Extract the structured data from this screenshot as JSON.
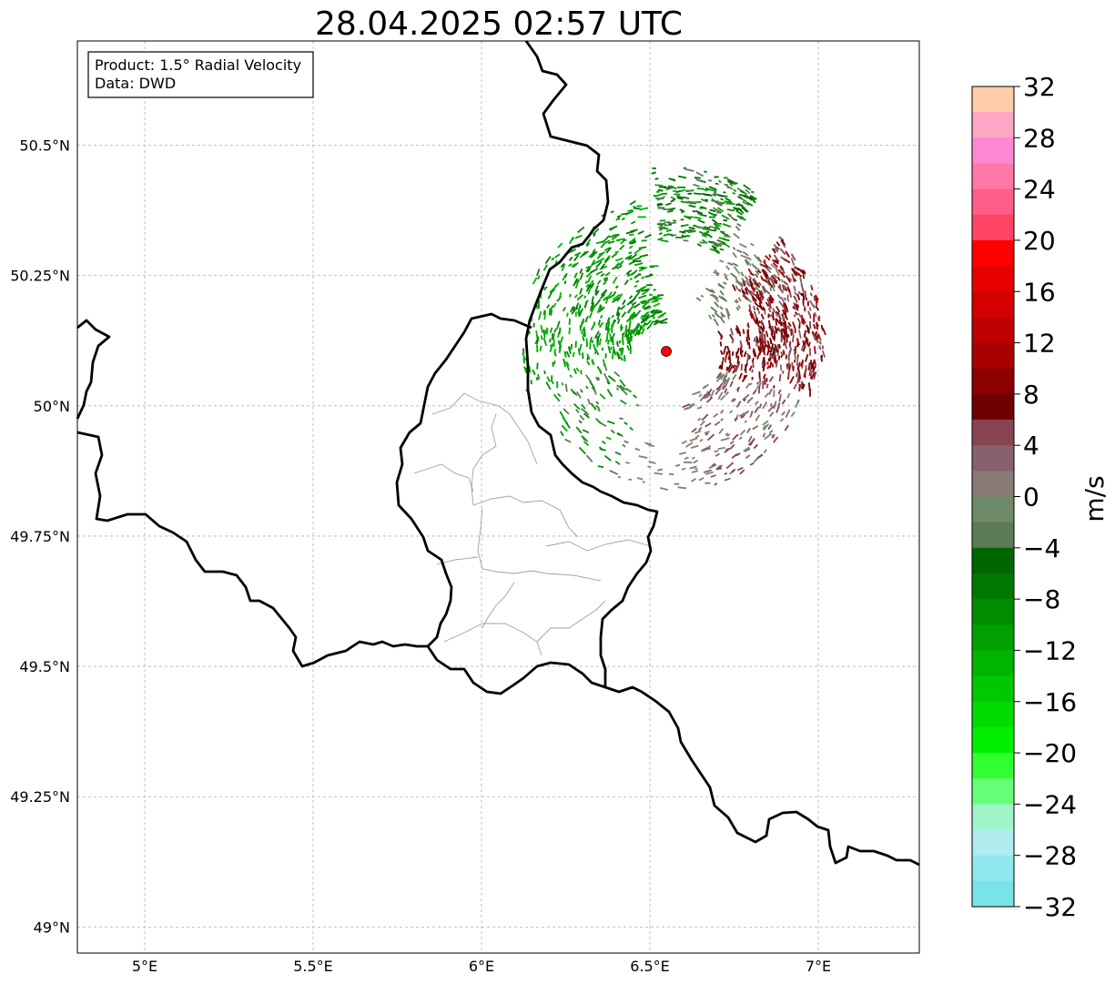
{
  "title": "28.04.2025 02:57 UTC",
  "info_box": {
    "line1": "Product: 1.5° Radial Velocity",
    "line2": "Data: DWD"
  },
  "map": {
    "lon_range": [
      4.8,
      7.3
    ],
    "lat_range": [
      48.95,
      50.7
    ],
    "x_ticks": [
      {
        "value": 5.0,
        "label": "5°E"
      },
      {
        "value": 5.5,
        "label": "5.5°E"
      },
      {
        "value": 6.0,
        "label": "6°E"
      },
      {
        "value": 6.5,
        "label": "6.5°E"
      },
      {
        "value": 7.0,
        "label": "7°E"
      }
    ],
    "y_ticks": [
      {
        "value": 49.0,
        "label": "49°N"
      },
      {
        "value": 49.25,
        "label": "49.25°N"
      },
      {
        "value": 49.5,
        "label": "49.5°N"
      },
      {
        "value": 49.75,
        "label": "49.75°N"
      },
      {
        "value": 50.0,
        "label": "50°N"
      },
      {
        "value": 50.25,
        "label": "50.25°N"
      },
      {
        "value": 50.5,
        "label": "50.5°N"
      }
    ],
    "grid": true,
    "radar_site": {
      "lon": 6.55,
      "lat": 50.11,
      "color": "#ff0000"
    }
  },
  "colorbar": {
    "label": "m/s",
    "min": -32,
    "max": 32,
    "step": 2,
    "tick_labels": [
      "32",
      "28",
      "24",
      "20",
      "16",
      "12",
      "8",
      "4",
      "0",
      "−4",
      "−8",
      "−12",
      "−16",
      "−20",
      "−24",
      "−28",
      "−32"
    ],
    "tick_values": [
      32,
      28,
      24,
      20,
      16,
      12,
      8,
      4,
      0,
      -4,
      -8,
      -12,
      -16,
      -20,
      -24,
      -28,
      -32
    ],
    "colors_top_to_bottom": [
      "#ffccaa",
      "#ffa6c4",
      "#ff88d4",
      "#ff77a8",
      "#ff5e88",
      "#ff4466",
      "#ff0000",
      "#e60000",
      "#d20000",
      "#be0000",
      "#a80000",
      "#8c0000",
      "#6e0000",
      "#884450",
      "#886070",
      "#8a7a74",
      "#6e8a68",
      "#5c7a56",
      "#006600",
      "#007800",
      "#008c00",
      "#00a000",
      "#00b400",
      "#00c800",
      "#00dc00",
      "#00f000",
      "#30ff30",
      "#66ff77",
      "#a0f5c8",
      "#b0ecee",
      "#90e8ee",
      "#78e4e8"
    ]
  }
}
